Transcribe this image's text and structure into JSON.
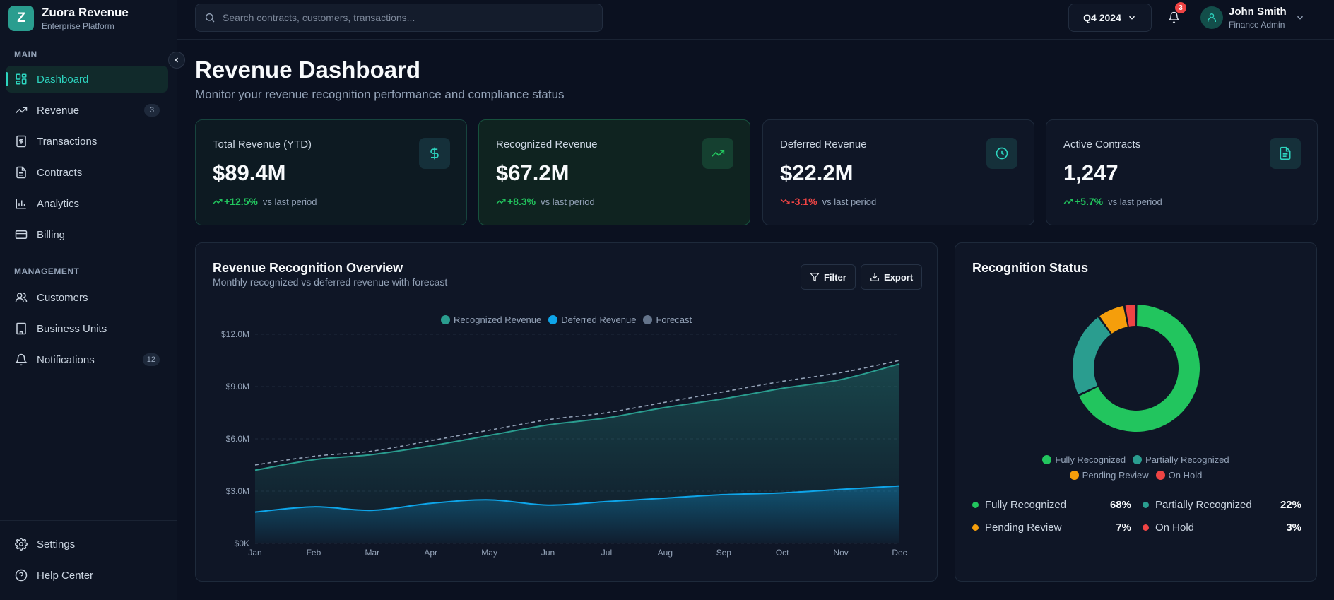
{
  "brand": {
    "logo_letter": "Z",
    "name": "Zuora Revenue",
    "subtitle": "Enterprise Platform"
  },
  "sidebar": {
    "sections": [
      {
        "label": "MAIN"
      },
      {
        "label": "MANAGEMENT"
      }
    ],
    "main_items": [
      {
        "label": "Dashboard",
        "icon": "dashboard-icon",
        "active": true
      },
      {
        "label": "Revenue",
        "icon": "trending-up-icon",
        "badge": "3"
      },
      {
        "label": "Transactions",
        "icon": "receipt-icon"
      },
      {
        "label": "Contracts",
        "icon": "document-icon"
      },
      {
        "label": "Analytics",
        "icon": "bar-chart-icon"
      },
      {
        "label": "Billing",
        "icon": "credit-card-icon"
      }
    ],
    "management_items": [
      {
        "label": "Customers",
        "icon": "users-icon"
      },
      {
        "label": "Business Units",
        "icon": "building-icon"
      },
      {
        "label": "Notifications",
        "icon": "bell-icon",
        "badge": "12"
      }
    ],
    "footer_items": [
      {
        "label": "Settings",
        "icon": "gear-icon"
      },
      {
        "label": "Help Center",
        "icon": "help-circle-icon"
      }
    ]
  },
  "topbar": {
    "search_placeholder": "Search contracts, customers, transactions...",
    "period": "Q4 2024",
    "notification_count": "3",
    "user": {
      "name": "John Smith",
      "role": "Finance Admin"
    }
  },
  "page": {
    "title": "Revenue Dashboard",
    "subtitle": "Monitor your revenue recognition performance and compliance status"
  },
  "kpis": [
    {
      "label": "Total Revenue (YTD)",
      "value": "$89.4M",
      "delta": "+12.5%",
      "direction": "up",
      "vs": "vs last period",
      "icon": "dollar-icon"
    },
    {
      "label": "Recognized Revenue",
      "value": "$67.2M",
      "delta": "+8.3%",
      "direction": "up",
      "vs": "vs last period",
      "icon": "trending-up-icon"
    },
    {
      "label": "Deferred Revenue",
      "value": "$22.2M",
      "delta": "-3.1%",
      "direction": "down",
      "vs": "vs last period",
      "icon": "clock-icon"
    },
    {
      "label": "Active Contracts",
      "value": "1,247",
      "delta": "+5.7%",
      "direction": "up",
      "vs": "vs last period",
      "icon": "file-icon"
    }
  ],
  "colors": {
    "accent": "#2a9d8f",
    "up": "#22c55e",
    "down": "#ef4444",
    "recognized": "#2a9d8f",
    "deferred": "#0ea5e9",
    "forecast": "#94a3b8",
    "fully": "#22c55e",
    "partially": "#2a9d8f",
    "pending": "#f59e0b",
    "hold": "#ef4444"
  },
  "overview": {
    "title": "Revenue Recognition Overview",
    "subtitle": "Monthly recognized vs deferred revenue with forecast",
    "filter_label": "Filter",
    "export_label": "Export"
  },
  "status": {
    "title": "Recognition Status"
  },
  "chart_data": [
    {
      "type": "area",
      "categories": [
        "Jan",
        "Feb",
        "Mar",
        "Apr",
        "May",
        "Jun",
        "Jul",
        "Aug",
        "Sep",
        "Oct",
        "Nov",
        "Dec"
      ],
      "y_ticks": [
        "$0K",
        "$3.0M",
        "$6.0M",
        "$9.0M",
        "$12.0M"
      ],
      "ylim": [
        0,
        12
      ],
      "grid": true,
      "legend_position": "top-center",
      "series": [
        {
          "name": "Recognized Revenue",
          "values": [
            4.2,
            4.8,
            5.1,
            5.6,
            6.2,
            6.8,
            7.2,
            7.8,
            8.3,
            8.9,
            9.4,
            10.3
          ]
        },
        {
          "name": "Deferred Revenue",
          "values": [
            1.8,
            2.1,
            1.9,
            2.3,
            2.5,
            2.2,
            2.4,
            2.6,
            2.8,
            2.9,
            3.1,
            3.3
          ]
        },
        {
          "name": "Forecast",
          "values": [
            4.5,
            5.0,
            5.3,
            5.9,
            6.5,
            7.1,
            7.5,
            8.1,
            8.7,
            9.3,
            9.8,
            10.5
          ]
        }
      ]
    },
    {
      "type": "pie",
      "donut": true,
      "legend_position": "bottom",
      "series": [
        {
          "name": "Fully Recognized",
          "values": [
            68
          ],
          "label": "68%"
        },
        {
          "name": "Partially Recognized",
          "values": [
            22
          ],
          "label": "22%"
        },
        {
          "name": "Pending Review",
          "values": [
            7
          ],
          "label": "7%"
        },
        {
          "name": "On Hold",
          "values": [
            3
          ],
          "label": "3%"
        }
      ]
    }
  ]
}
